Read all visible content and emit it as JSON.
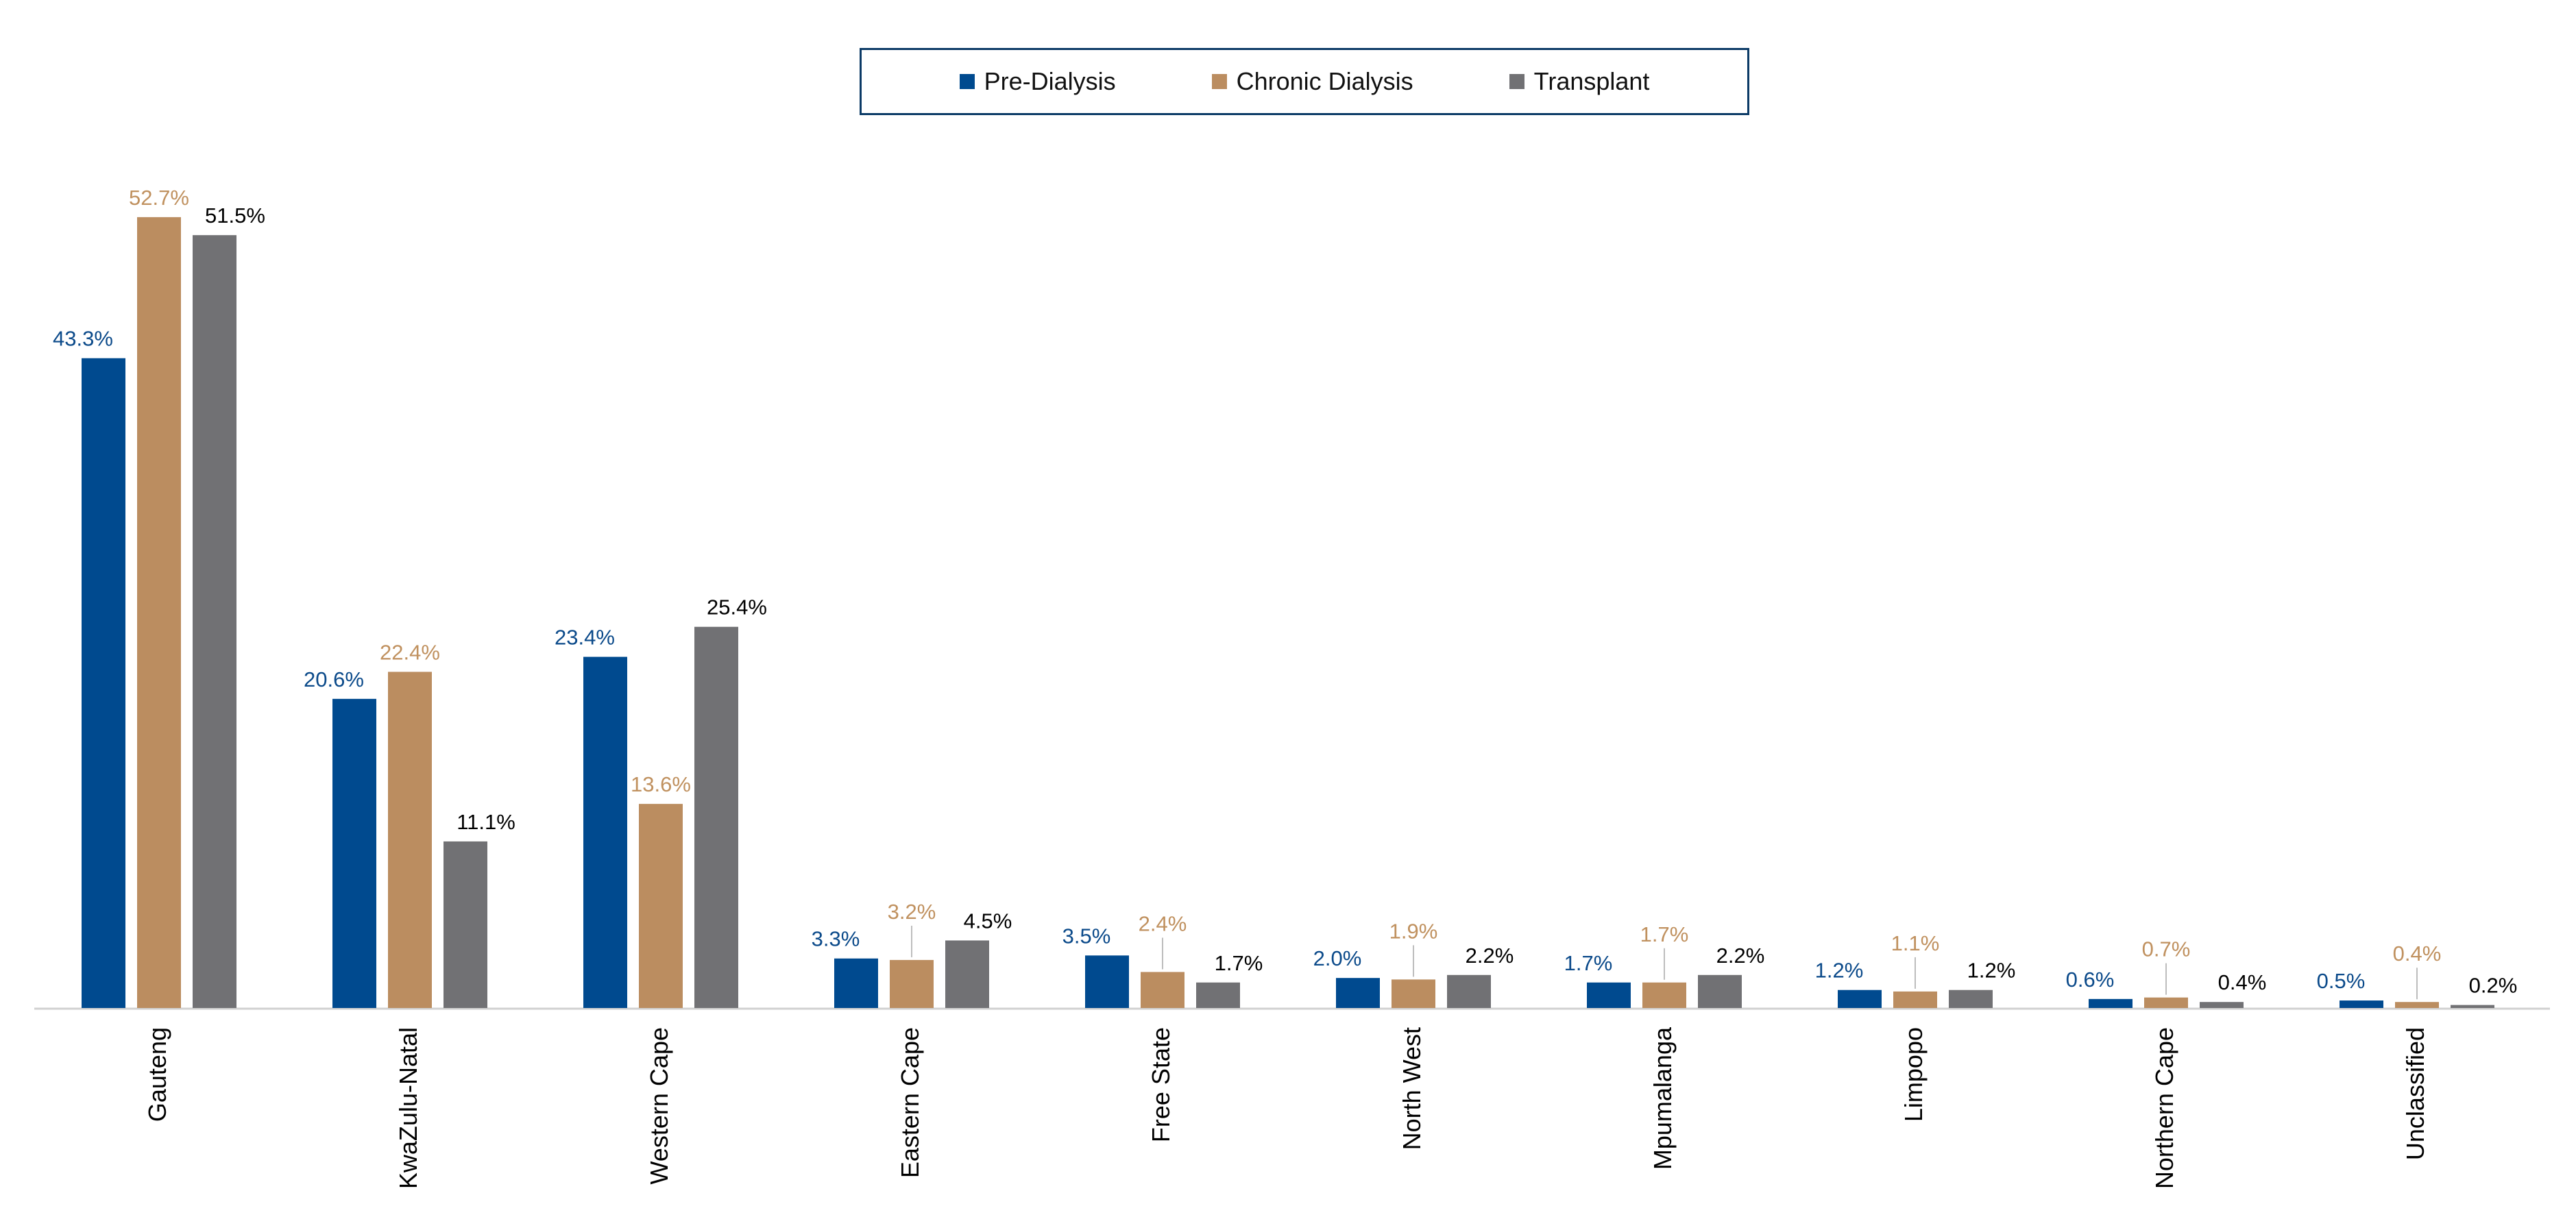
{
  "chart_data": {
    "type": "bar",
    "categories": [
      "Gauteng",
      "KwaZulu-Natal",
      "Western Cape",
      "Eastern Cape",
      "Free State",
      "North West",
      "Mpumalanga",
      "Limpopo",
      "Northern Cape",
      "Unclassified"
    ],
    "series": [
      {
        "name": "Pre-Dialysis",
        "color": "#004a8f",
        "label_color": "#0b4a8a",
        "values": [
          43.3,
          20.6,
          23.4,
          3.3,
          3.5,
          2.0,
          1.7,
          1.2,
          0.6,
          0.5
        ],
        "labels": [
          "43.3%",
          "20.6%",
          "23.4%",
          "3.3%",
          "3.5%",
          "2.0%",
          "1.7%",
          "1.2%",
          "0.6%",
          "0.5%"
        ]
      },
      {
        "name": "Chronic Dialysis",
        "color": "#bb8d60",
        "label_color": "#c0915f",
        "values": [
          52.7,
          22.4,
          13.6,
          3.2,
          2.4,
          1.9,
          1.7,
          1.1,
          0.7,
          0.4
        ],
        "labels": [
          "52.7%",
          "22.4%",
          "13.6%",
          "3.2%",
          "2.4%",
          "1.9%",
          "1.7%",
          "1.1%",
          "0.7%",
          "0.4%"
        ]
      },
      {
        "name": "Transplant",
        "color": "#717174",
        "label_color": "#000000",
        "values": [
          51.5,
          11.1,
          25.4,
          4.5,
          1.7,
          2.2,
          2.2,
          1.2,
          0.4,
          0.2
        ],
        "labels": [
          "51.5%",
          "11.1%",
          "25.4%",
          "4.5%",
          "1.7%",
          "2.2%",
          "2.2%",
          "1.2%",
          "0.4%",
          "0.2%"
        ]
      }
    ],
    "ylim": [
      0,
      55
    ],
    "legend_position": "top-center",
    "grid": false
  }
}
